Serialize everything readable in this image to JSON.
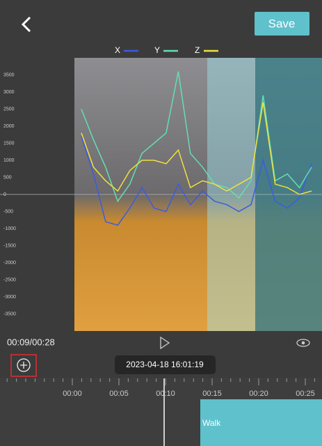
{
  "header": {
    "save": "Save"
  },
  "chart_data": {
    "type": "line",
    "categories": [
      null,
      null,
      null,
      null,
      null,
      null,
      null,
      null,
      null,
      null,
      null,
      null,
      null,
      null,
      null,
      null,
      null,
      null,
      null,
      null
    ],
    "series": [
      {
        "name": "X",
        "color": "#3d5be0",
        "values": [
          1700,
          600,
          -800,
          -900,
          -400,
          200,
          -400,
          -500,
          300,
          -300,
          100,
          -200,
          -300,
          -500,
          -300,
          1000,
          -200,
          -400,
          -100,
          900
        ]
      },
      {
        "name": "Y",
        "color": "#62e0b0",
        "values": [
          2500,
          1600,
          800,
          -200,
          300,
          1200,
          1500,
          1800,
          3600,
          1200,
          800,
          300,
          200,
          -100,
          400,
          2900,
          400,
          600,
          200,
          800
        ]
      },
      {
        "name": "Z",
        "color": "#f0e040",
        "values": [
          1800,
          800,
          400,
          100,
          700,
          1000,
          1000,
          900,
          1300,
          200,
          400,
          300,
          100,
          300,
          500,
          2700,
          300,
          200,
          0,
          100
        ]
      }
    ],
    "ylim": [
      -4000,
      4000
    ],
    "yticks": [
      3500,
      3000,
      2500,
      2000,
      1500,
      1000,
      500,
      0,
      -500,
      -1000,
      -1500,
      -2000,
      -2500,
      -3000,
      -3500
    ]
  },
  "player": {
    "time": "00:09/00:28",
    "timestamp": "2023-04-18 16:01:19"
  },
  "timeline": {
    "labels": [
      "00:00",
      "00:05",
      "00:10",
      "00:15",
      "00:20",
      "00:25"
    ],
    "segment": "Walk"
  }
}
